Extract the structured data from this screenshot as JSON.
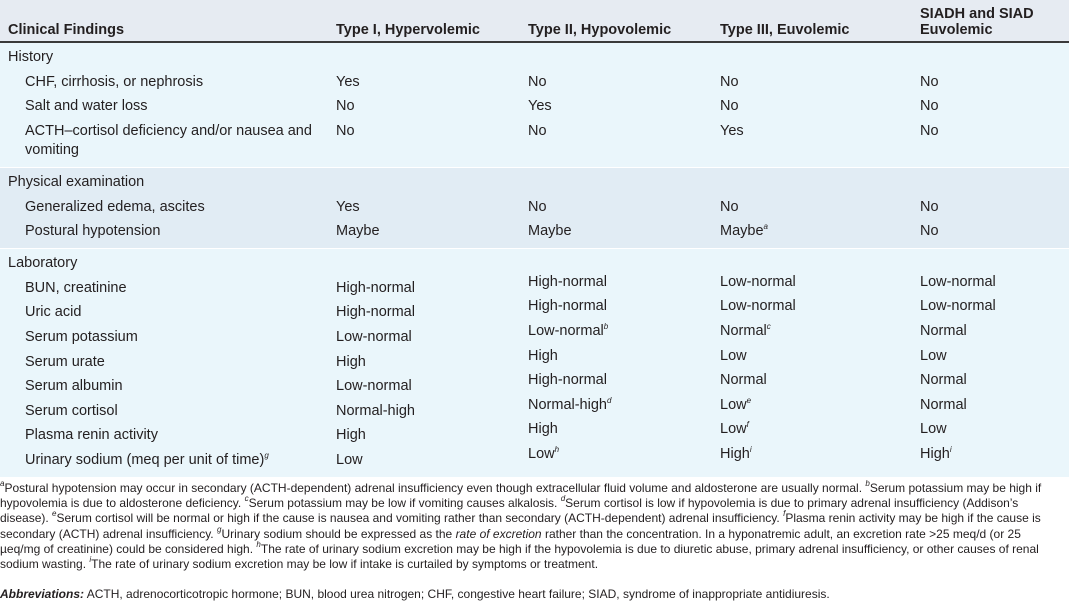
{
  "header": [
    "Clinical Findings",
    "Type I, Hypervolemic",
    "Type II, Hypovolemic",
    "Type III, Euvolemic",
    "SIADH and SIAD Euvolemic"
  ],
  "sections": [
    {
      "label": "History",
      "rows": [
        {
          "cells": [
            {
              "t": "CHF, cirrhosis, or nephrosis"
            },
            {
              "t": "Yes"
            },
            {
              "t": "No"
            },
            {
              "t": "No"
            },
            {
              "t": "No"
            }
          ]
        },
        {
          "cells": [
            {
              "t": "Salt and water loss"
            },
            {
              "t": "No"
            },
            {
              "t": "Yes"
            },
            {
              "t": "No"
            },
            {
              "t": "No"
            }
          ]
        },
        {
          "cells": [
            {
              "t": "ACTH–cortisol deficiency and/or nausea and vomiting"
            },
            {
              "t": "No"
            },
            {
              "t": "No"
            },
            {
              "t": "Yes"
            },
            {
              "t": "No"
            }
          ]
        }
      ]
    },
    {
      "label": "Physical examination",
      "rows": [
        {
          "cells": [
            {
              "t": "Generalized edema, ascites"
            },
            {
              "t": "Yes"
            },
            {
              "t": "No"
            },
            {
              "t": "No"
            },
            {
              "t": "No"
            }
          ]
        },
        {
          "cells": [
            {
              "t": "Postural hypotension"
            },
            {
              "t": "Maybe"
            },
            {
              "t": "Maybe"
            },
            {
              "t": "Maybe",
              "sup": "a"
            },
            {
              "t": "No"
            }
          ]
        }
      ]
    },
    {
      "label": "Laboratory",
      "rows": [
        {
          "cells": [
            {
              "t": "BUN, creatinine"
            },
            {
              "t": "High-normal"
            },
            {
              "t": "High-normal"
            },
            {
              "t": "Low-normal"
            },
            {
              "t": "Low-normal"
            }
          ]
        },
        {
          "cells": [
            {
              "t": "Uric acid"
            },
            {
              "t": "High-normal"
            },
            {
              "t": "High-normal"
            },
            {
              "t": "Low-normal"
            },
            {
              "t": "Low-normal"
            }
          ]
        },
        {
          "cells": [
            {
              "t": "Serum potassium"
            },
            {
              "t": "Low-normal"
            },
            {
              "t": "Low-normal",
              "sup": "b"
            },
            {
              "t": "Normal",
              "sup": "c"
            },
            {
              "t": "Normal"
            }
          ]
        },
        {
          "cells": [
            {
              "t": "Serum urate"
            },
            {
              "t": "High"
            },
            {
              "t": "High"
            },
            {
              "t": "Low"
            },
            {
              "t": "Low"
            }
          ]
        },
        {
          "cells": [
            {
              "t": "Serum albumin"
            },
            {
              "t": "Low-normal"
            },
            {
              "t": "High-normal"
            },
            {
              "t": "Normal"
            },
            {
              "t": "Normal"
            }
          ]
        },
        {
          "cells": [
            {
              "t": "Serum cortisol"
            },
            {
              "t": "Normal-high"
            },
            {
              "t": "Normal-high",
              "sup": "d"
            },
            {
              "t": "Low",
              "sup": "e"
            },
            {
              "t": "Normal"
            }
          ]
        },
        {
          "cells": [
            {
              "t": "Plasma renin activity"
            },
            {
              "t": "High"
            },
            {
              "t": "High"
            },
            {
              "t": "Low",
              "sup": "f"
            },
            {
              "t": "Low"
            }
          ]
        },
        {
          "cells": [
            {
              "t": "Urinary sodium (meq per unit of time)",
              "sup": "g"
            },
            {
              "t": "Low"
            },
            {
              "t": "Low",
              "sup": "h"
            },
            {
              "t": "High",
              "sup": "i"
            },
            {
              "t": "High",
              "sup": "i"
            }
          ]
        }
      ]
    }
  ],
  "footnotes": [
    {
      "letter": "a",
      "text": "Postural hypotension may occur in secondary (ACTH-dependent) adrenal insufficiency even though extracellular fluid volume and aldosterone are usually normal. "
    },
    {
      "letter": "b",
      "text": "Serum potassium may be high if hypovolemia is due to aldosterone deficiency. "
    },
    {
      "letter": "c",
      "text": "Serum potassium may be low if vomiting causes alkalosis. "
    },
    {
      "letter": "d",
      "text": "Serum cortisol is low if hypovolemia is due to primary adrenal insufficiency (Addison’s disease). "
    },
    {
      "letter": "e",
      "text": "Serum cortisol will be normal or high if the cause is nausea and vomiting rather than secondary (ACTH-dependent) adrenal insufficiency. "
    },
    {
      "letter": "f",
      "text": "Plasma renin activity may be high if the cause is secondary (ACTH) adrenal insufficiency. "
    },
    {
      "letter": "g",
      "text": "Urinary sodium should be expressed as the ",
      "italic": "rate of excretion",
      "after": " rather than the concentration. In a hyponatremic adult, an excretion rate >25 meq/d (or 25 µeq/mg of creatinine) could be considered high. "
    },
    {
      "letter": "h",
      "text": "The rate of urinary sodium excretion may be high if the hypovolemia is due to diuretic abuse, primary adrenal insufficiency, or other causes of renal sodium wasting. "
    },
    {
      "letter": "i",
      "text": "The rate of urinary sodium excretion may be low if intake is curtailed by symptoms or treatment."
    }
  ],
  "abbreviations": {
    "label": "Abbreviations:",
    "text": " ACTH, adrenocorticotropic hormone; BUN, blood urea nitrogen; CHF, congestive heart failure; SIAD, syndrome of inappropriate antidiuresis."
  },
  "colors": {
    "header_bg": "#e6ebf2",
    "section_bg_light": "#eaf6fb",
    "section_bg_alt": "#e1ecf4",
    "header_rule": "#3a3a3a"
  }
}
